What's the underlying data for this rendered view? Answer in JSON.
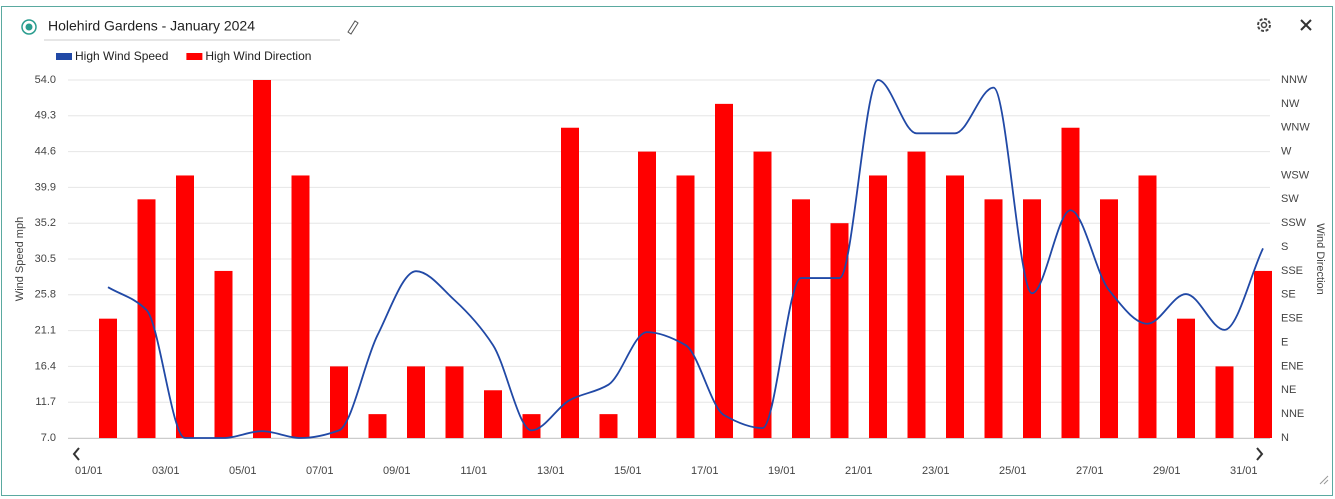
{
  "chart_data": {
    "type": "combo",
    "title": "Holehird Gardens - January 2024",
    "categories": [
      "01/01",
      null,
      "03/01",
      null,
      "05/01",
      null,
      "07/01",
      null,
      "09/01",
      null,
      "11/01",
      null,
      "13/01",
      null,
      "15/01",
      null,
      "17/01",
      null,
      "19/01",
      null,
      "21/01",
      null,
      "23/01",
      null,
      "25/01",
      null,
      "27/01",
      null,
      "29/01",
      null,
      "31/01"
    ],
    "series": [
      {
        "name": "High Wind Speed",
        "type": "line",
        "color": "#2149a6",
        "values": [
          26.8,
          23.8,
          7.0,
          7.0,
          7.9,
          7.0,
          8.0,
          20.5,
          28.9,
          25.1,
          19.2,
          8.0,
          12.0,
          14.0,
          20.9,
          19.2,
          10.0,
          8.3,
          28.0,
          28.0,
          54.0,
          47.0,
          47.0,
          53.0,
          26.0,
          36.9,
          26.4,
          22.0,
          25.9,
          21.2,
          31.9
        ]
      },
      {
        "name": "High Wind Direction",
        "type": "bar",
        "axis": "y2",
        "color": "#ff0000",
        "values": [
          112.5,
          225,
          247.5,
          157.5,
          337.5,
          247.5,
          67.5,
          22.5,
          67.5,
          67.5,
          45,
          22.5,
          292.5,
          22.5,
          270,
          247.5,
          315,
          270,
          225,
          202.5,
          247.5,
          270,
          247.5,
          225,
          225,
          292.5,
          225,
          247.5,
          112.5,
          67.5,
          157.5
        ]
      }
    ],
    "ylabel": "Wind Speed mph",
    "y2label": "Wind Direction",
    "ylim": [
      7,
      54
    ],
    "yticks": [
      {
        "value": 7,
        "label": "7.0"
      },
      11.7,
      16.4,
      21.1,
      25.8,
      30.5,
      35.2,
      39.9,
      44.6,
      49.3,
      {
        "value": 54,
        "label": "54.0"
      }
    ],
    "y2lim": [
      0,
      337.5
    ],
    "y2ticks": [
      {
        "value": 0,
        "label": "N"
      },
      {
        "value": 22.5,
        "label": "NNE"
      },
      {
        "value": 45,
        "label": "NE"
      },
      {
        "value": 67.5,
        "label": "ENE"
      },
      {
        "value": 90,
        "label": "E"
      },
      {
        "value": 112.5,
        "label": "ESE"
      },
      {
        "value": 135,
        "label": "SE"
      },
      {
        "value": 157.5,
        "label": "SSE"
      },
      {
        "value": 180,
        "label": "S"
      },
      {
        "value": 202.5,
        "label": "SSW"
      },
      {
        "value": 225,
        "label": "SW"
      },
      {
        "value": 247.5,
        "label": "WSW"
      },
      {
        "value": 270,
        "label": "W"
      },
      {
        "value": 292.5,
        "label": "WNW"
      },
      {
        "value": 315,
        "label": "NW"
      },
      {
        "value": 337.5,
        "label": "NNW"
      }
    ],
    "grid": true
  }
}
